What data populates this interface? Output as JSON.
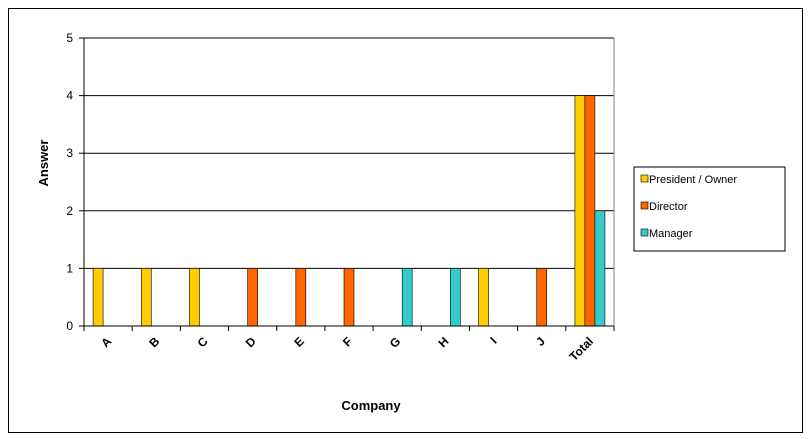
{
  "chart_data": {
    "type": "bar",
    "xlabel": "Company",
    "ylabel": "Answer",
    "ylim": [
      0,
      5
    ],
    "yticks": [
      0,
      1,
      2,
      3,
      4,
      5
    ],
    "grid": true,
    "legend_position": "right",
    "categories": [
      "A",
      "B",
      "C",
      "D",
      "E",
      "F",
      "G",
      "H",
      "I",
      "J",
      "Total"
    ],
    "series": [
      {
        "name": "President / Owner",
        "color": "#FFCC00",
        "values": [
          1,
          1,
          1,
          0,
          0,
          0,
          0,
          0,
          1,
          0,
          4
        ]
      },
      {
        "name": "Director",
        "color": "#FF6600",
        "values": [
          0,
          0,
          0,
          1,
          1,
          1,
          0,
          0,
          0,
          1,
          4
        ]
      },
      {
        "name": "Manager",
        "color": "#33CCCC",
        "values": [
          0,
          0,
          0,
          0,
          0,
          0,
          1,
          1,
          0,
          0,
          2
        ]
      }
    ]
  }
}
